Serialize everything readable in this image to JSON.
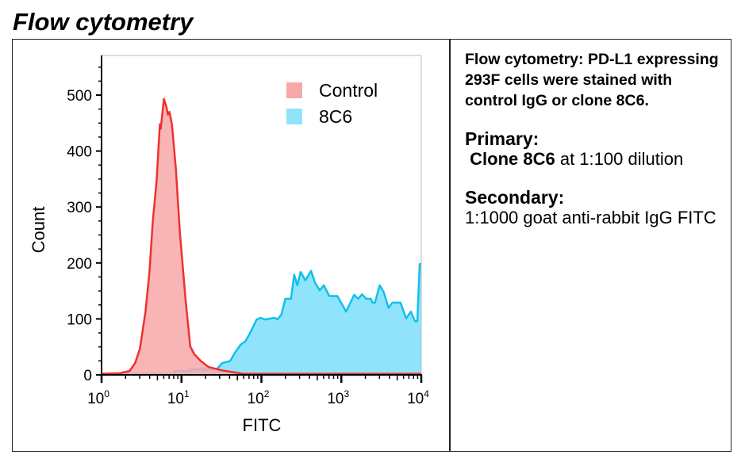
{
  "title": "Flow cytometry",
  "notes": {
    "description": "Flow cytometry: PD-L1 expressing 293F cells were stained with control IgG or clone 8C6.",
    "primary_heading": "Primary:",
    "primary_bold": "Clone 8C6",
    "primary_text": " at 1:100 dilution",
    "secondary_heading": "Secondary:",
    "secondary_text": "1:1000 goat anti-rabbit IgG FITC"
  },
  "chart_data": {
    "type": "area",
    "xlabel": "FITC",
    "ylabel": "Count",
    "xscale": "log",
    "xlim_log10": [
      0,
      4
    ],
    "ylim": [
      0,
      550
    ],
    "x_tick_base": "10",
    "x_tick_exponents": [
      "0",
      "1",
      "2",
      "3",
      "4"
    ],
    "y_ticks": [
      "0",
      "100",
      "200",
      "300",
      "400",
      "500"
    ],
    "legend_position": "top-right",
    "series": [
      {
        "name": "Control",
        "fill": "#f8a8a8",
        "stroke": "#f03030",
        "log10_x": [
          0.0,
          0.23,
          0.35,
          0.42,
          0.48,
          0.55,
          0.6,
          0.64,
          0.69,
          0.73,
          0.74,
          0.78,
          0.81,
          0.83,
          0.85,
          0.88,
          0.93,
          0.98,
          1.05,
          1.11,
          1.16,
          1.24,
          1.34,
          1.51,
          1.77,
          4.0
        ],
        "counts": [
          2,
          3,
          7,
          21,
          47,
          113,
          184,
          273,
          349,
          448,
          440,
          493,
          480,
          465,
          470,
          448,
          368,
          255,
          136,
          51,
          37,
          25,
          14,
          8,
          2,
          2
        ]
      },
      {
        "name": "8C6",
        "fill": "#8fe4fb",
        "stroke": "#10c0ee",
        "log10_x": [
          0.0,
          0.91,
          0.91,
          1.11,
          1.11,
          1.44,
          1.51,
          1.61,
          1.67,
          1.74,
          1.8,
          1.87,
          1.94,
          1.99,
          2.04,
          2.17,
          2.2,
          2.25,
          2.3,
          2.37,
          2.41,
          2.45,
          2.49,
          2.55,
          2.62,
          2.67,
          2.73,
          2.78,
          2.85,
          2.95,
          3.06,
          3.16,
          3.21,
          3.26,
          3.31,
          3.37,
          3.39,
          3.42,
          3.48,
          3.53,
          3.59,
          3.64,
          3.74,
          3.81,
          3.87,
          3.92,
          3.95,
          3.98,
          4.0
        ],
        "counts": [
          2,
          2,
          7,
          7,
          10,
          10,
          21,
          25,
          40,
          54,
          60,
          78,
          99,
          102,
          99,
          102,
          99,
          108,
          136,
          136,
          179,
          160,
          184,
          169,
          186,
          165,
          151,
          160,
          141,
          141,
          113,
          143,
          136,
          144,
          136,
          136,
          129,
          129,
          160,
          148,
          120,
          129,
          129,
          101,
          113,
          96,
          96,
          198,
          198
        ]
      }
    ]
  }
}
